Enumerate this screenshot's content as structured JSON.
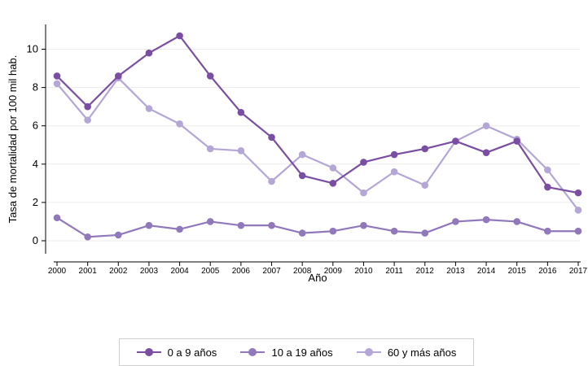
{
  "chart_data": {
    "type": "line",
    "xlabel": "Año",
    "ylabel": "Tasa de mortalidad por 100 mil hab.",
    "ylim": [
      0,
      11
    ],
    "yticks": [
      0,
      2,
      4,
      6,
      8,
      10
    ],
    "x": [
      2000,
      2001,
      2002,
      2003,
      2004,
      2005,
      2006,
      2007,
      2008,
      2009,
      2010,
      2011,
      2012,
      2013,
      2014,
      2015,
      2016,
      2017
    ],
    "grid": true,
    "legend_position": "bottom",
    "series": [
      {
        "name": "0 a 9 años",
        "color": "#7a4fa3",
        "values": [
          8.6,
          7.0,
          8.6,
          9.8,
          10.7,
          8.6,
          6.7,
          5.4,
          3.4,
          3.0,
          4.1,
          4.5,
          4.8,
          5.2,
          4.6,
          5.2,
          2.8,
          2.5
        ]
      },
      {
        "name": "10 a 19 años",
        "color": "#9078bb",
        "values": [
          1.2,
          0.2,
          0.3,
          0.8,
          0.6,
          1.0,
          0.8,
          0.8,
          0.4,
          0.5,
          0.8,
          0.5,
          0.4,
          1.0,
          1.1,
          1.0,
          0.5,
          0.5
        ]
      },
      {
        "name": "60 y más años",
        "color": "#b4a6d6",
        "values": [
          8.2,
          6.3,
          8.5,
          6.9,
          6.1,
          4.8,
          4.7,
          3.1,
          4.5,
          3.8,
          2.5,
          3.6,
          2.9,
          5.2,
          6.0,
          5.3,
          3.7,
          1.6
        ]
      }
    ]
  }
}
